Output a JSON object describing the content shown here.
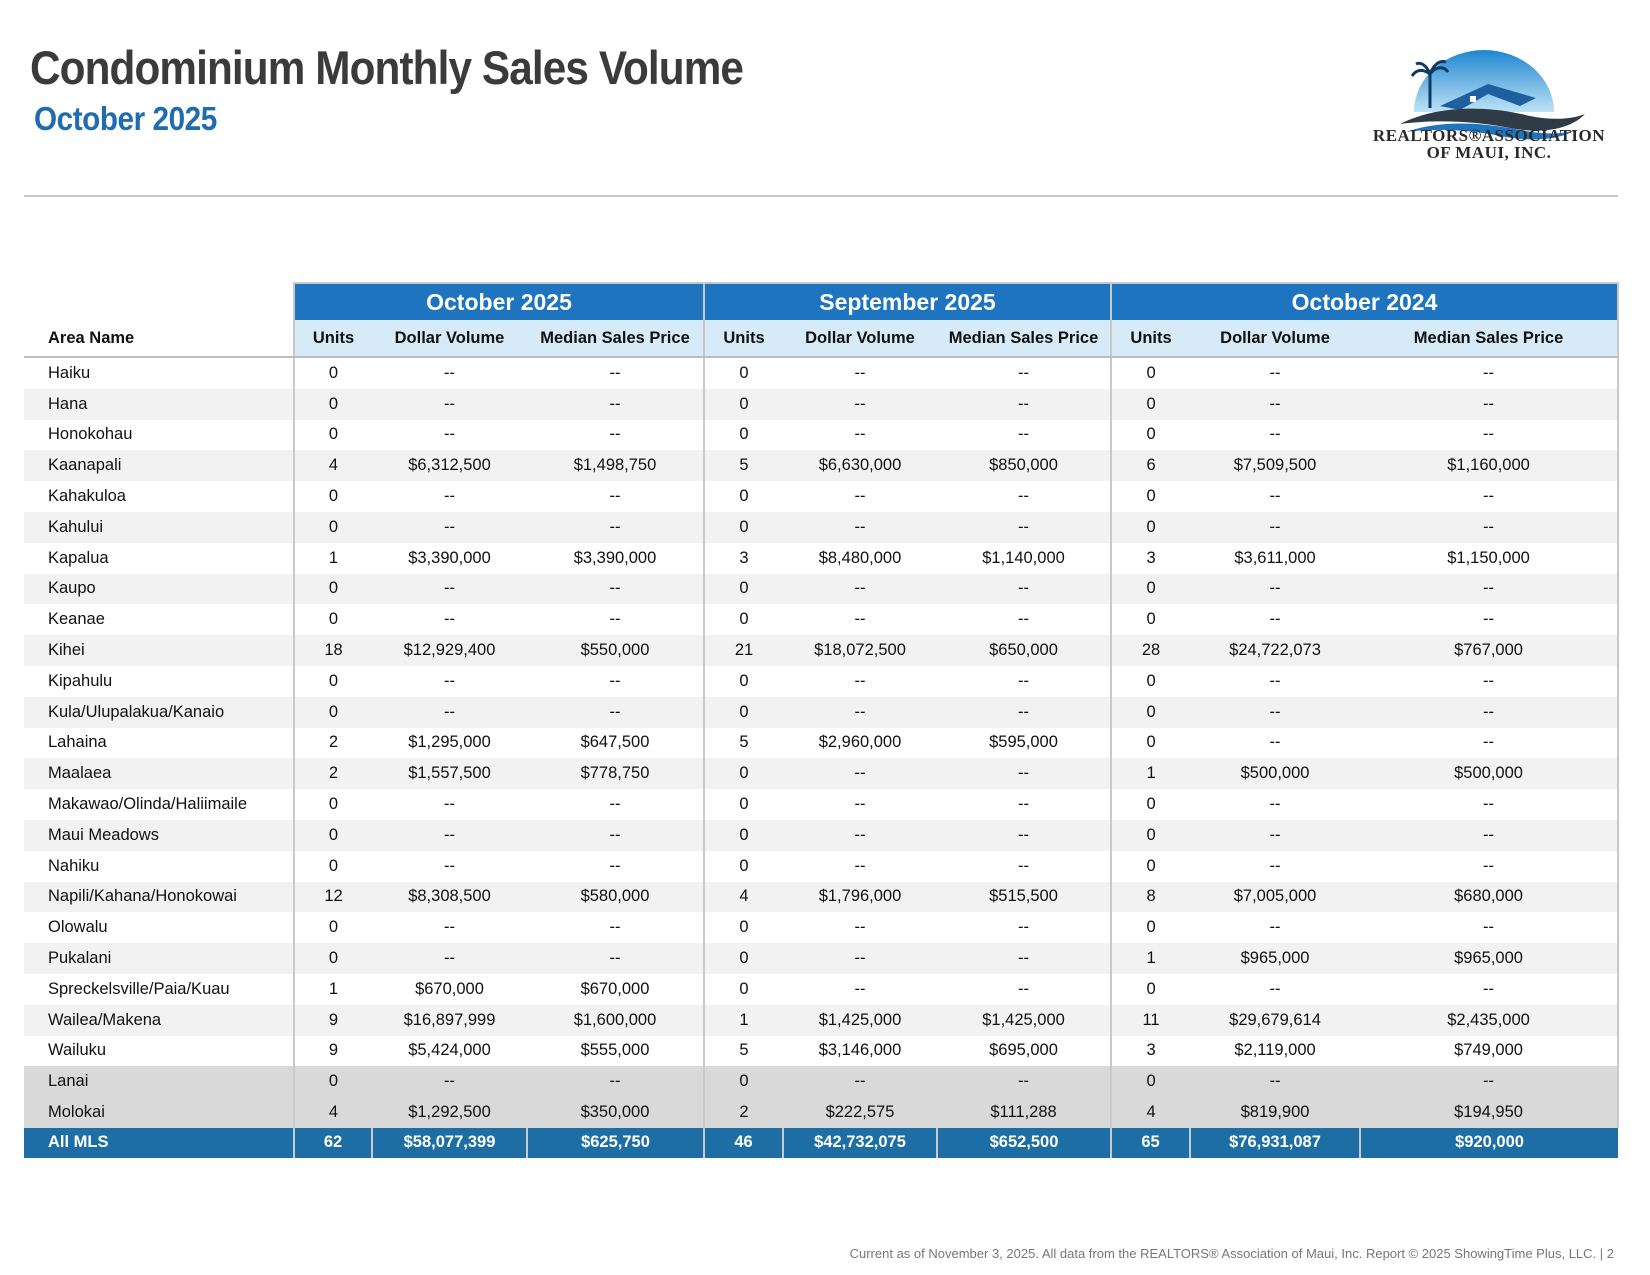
{
  "header": {
    "title": "Condominium Monthly Sales Volume",
    "subtitle": "October 2025",
    "logo_line1": "REALTORS®ASSOCIATION",
    "logo_line2": "OF MAUI, INC."
  },
  "table": {
    "area_header": "Area Name",
    "periods": [
      "October 2025",
      "September 2025",
      "October 2024"
    ],
    "columns": [
      "Units",
      "Dollar Volume",
      "Median Sales Price"
    ],
    "rows": [
      {
        "area": "Haiku",
        "values": [
          "0",
          "--",
          "--",
          "0",
          "--",
          "--",
          "0",
          "--",
          "--"
        ]
      },
      {
        "area": "Hana",
        "values": [
          "0",
          "--",
          "--",
          "0",
          "--",
          "--",
          "0",
          "--",
          "--"
        ]
      },
      {
        "area": "Honokohau",
        "values": [
          "0",
          "--",
          "--",
          "0",
          "--",
          "--",
          "0",
          "--",
          "--"
        ]
      },
      {
        "area": "Kaanapali",
        "values": [
          "4",
          "$6,312,500",
          "$1,498,750",
          "5",
          "$6,630,000",
          "$850,000",
          "6",
          "$7,509,500",
          "$1,160,000"
        ]
      },
      {
        "area": "Kahakuloa",
        "values": [
          "0",
          "--",
          "--",
          "0",
          "--",
          "--",
          "0",
          "--",
          "--"
        ]
      },
      {
        "area": "Kahului",
        "values": [
          "0",
          "--",
          "--",
          "0",
          "--",
          "--",
          "0",
          "--",
          "--"
        ]
      },
      {
        "area": "Kapalua",
        "values": [
          "1",
          "$3,390,000",
          "$3,390,000",
          "3",
          "$8,480,000",
          "$1,140,000",
          "3",
          "$3,611,000",
          "$1,150,000"
        ]
      },
      {
        "area": "Kaupo",
        "values": [
          "0",
          "--",
          "--",
          "0",
          "--",
          "--",
          "0",
          "--",
          "--"
        ]
      },
      {
        "area": "Keanae",
        "values": [
          "0",
          "--",
          "--",
          "0",
          "--",
          "--",
          "0",
          "--",
          "--"
        ]
      },
      {
        "area": "Kihei",
        "values": [
          "18",
          "$12,929,400",
          "$550,000",
          "21",
          "$18,072,500",
          "$650,000",
          "28",
          "$24,722,073",
          "$767,000"
        ]
      },
      {
        "area": "Kipahulu",
        "values": [
          "0",
          "--",
          "--",
          "0",
          "--",
          "--",
          "0",
          "--",
          "--"
        ]
      },
      {
        "area": "Kula/Ulupalakua/Kanaio",
        "values": [
          "0",
          "--",
          "--",
          "0",
          "--",
          "--",
          "0",
          "--",
          "--"
        ]
      },
      {
        "area": "Lahaina",
        "values": [
          "2",
          "$1,295,000",
          "$647,500",
          "5",
          "$2,960,000",
          "$595,000",
          "0",
          "--",
          "--"
        ]
      },
      {
        "area": "Maalaea",
        "values": [
          "2",
          "$1,557,500",
          "$778,750",
          "0",
          "--",
          "--",
          "1",
          "$500,000",
          "$500,000"
        ]
      },
      {
        "area": "Makawao/Olinda/Haliimaile",
        "values": [
          "0",
          "--",
          "--",
          "0",
          "--",
          "--",
          "0",
          "--",
          "--"
        ]
      },
      {
        "area": "Maui Meadows",
        "values": [
          "0",
          "--",
          "--",
          "0",
          "--",
          "--",
          "0",
          "--",
          "--"
        ]
      },
      {
        "area": "Nahiku",
        "values": [
          "0",
          "--",
          "--",
          "0",
          "--",
          "--",
          "0",
          "--",
          "--"
        ]
      },
      {
        "area": "Napili/Kahana/Honokowai",
        "values": [
          "12",
          "$8,308,500",
          "$580,000",
          "4",
          "$1,796,000",
          "$515,500",
          "8",
          "$7,005,000",
          "$680,000"
        ]
      },
      {
        "area": "Olowalu",
        "values": [
          "0",
          "--",
          "--",
          "0",
          "--",
          "--",
          "0",
          "--",
          "--"
        ]
      },
      {
        "area": "Pukalani",
        "values": [
          "0",
          "--",
          "--",
          "0",
          "--",
          "--",
          "1",
          "$965,000",
          "$965,000"
        ]
      },
      {
        "area": "Spreckelsville/Paia/Kuau",
        "values": [
          "1",
          "$670,000",
          "$670,000",
          "0",
          "--",
          "--",
          "0",
          "--",
          "--"
        ]
      },
      {
        "area": "Wailea/Makena",
        "values": [
          "9",
          "$16,897,999",
          "$1,600,000",
          "1",
          "$1,425,000",
          "$1,425,000",
          "11",
          "$29,679,614",
          "$2,435,000"
        ]
      },
      {
        "area": "Wailuku",
        "values": [
          "9",
          "$5,424,000",
          "$555,000",
          "5",
          "$3,146,000",
          "$695,000",
          "3",
          "$2,119,000",
          "$749,000"
        ]
      },
      {
        "area": "Lanai",
        "island": true,
        "values": [
          "0",
          "--",
          "--",
          "0",
          "--",
          "--",
          "0",
          "--",
          "--"
        ]
      },
      {
        "area": "Molokai",
        "island": true,
        "values": [
          "4",
          "$1,292,500",
          "$350,000",
          "2",
          "$222,575",
          "$111,288",
          "4",
          "$819,900",
          "$194,950"
        ]
      }
    ],
    "total": {
      "area": "All MLS",
      "values": [
        "62",
        "$58,077,399",
        "$625,750",
        "46",
        "$42,732,075",
        "$652,500",
        "65",
        "$76,931,087",
        "$920,000"
      ]
    }
  },
  "footer": "Current as of November 3, 2025. All data from the REALTORS® Association of Maui, Inc. Report © 2025 ShowingTime Plus, LLC.  |  2",
  "colors": {
    "title": "#3b3b3b",
    "subtitle": "#1f6cb0",
    "period_header": "#1f74c0",
    "column_header": "#d6eaf8",
    "total_row": "#1e6ea6",
    "island_rows": "#d9d9d9"
  }
}
